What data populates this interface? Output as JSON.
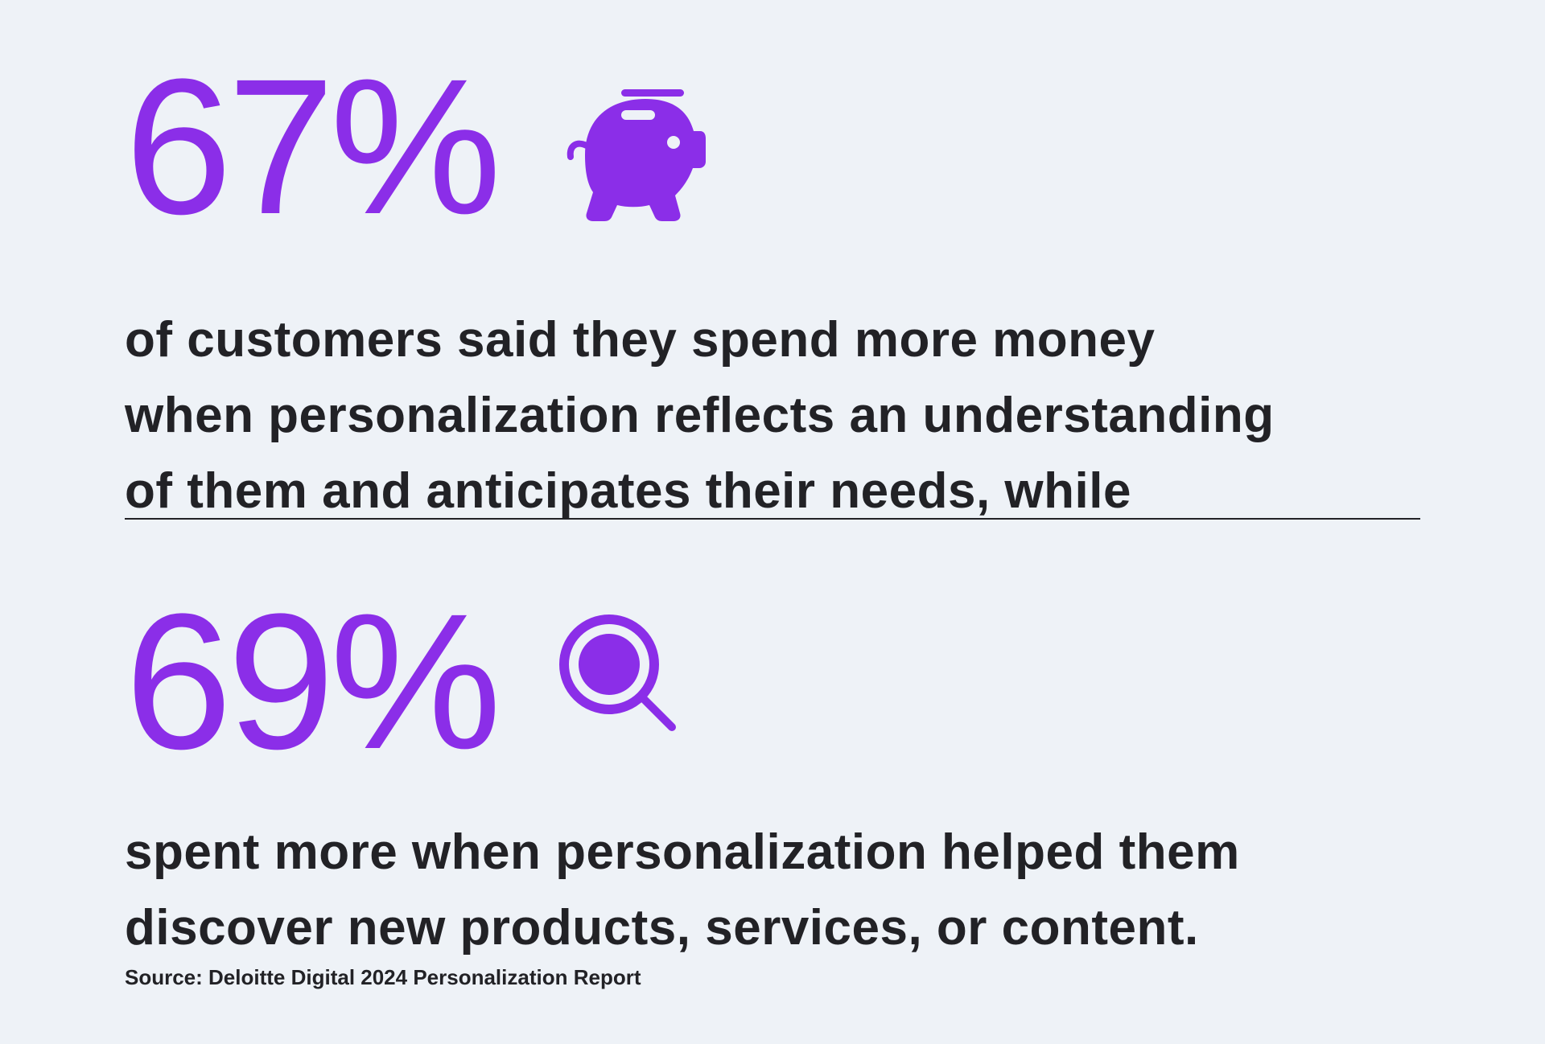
{
  "colors": {
    "accent": "#8b2ee8",
    "text": "#222226",
    "background": "#eef2f7"
  },
  "stats": [
    {
      "value": "67%",
      "icon": "piggy-bank-icon",
      "text": "of customers said they spend more money\nwhen personalization reflects an understanding\nof them and anticipates their needs, while"
    },
    {
      "value": "69%",
      "icon": "magnifying-glass-icon",
      "text": "spent more when personalization helped them\ndiscover new products, services, or content."
    }
  ],
  "source": "Source: Deloitte Digital 2024 Personalization Report"
}
